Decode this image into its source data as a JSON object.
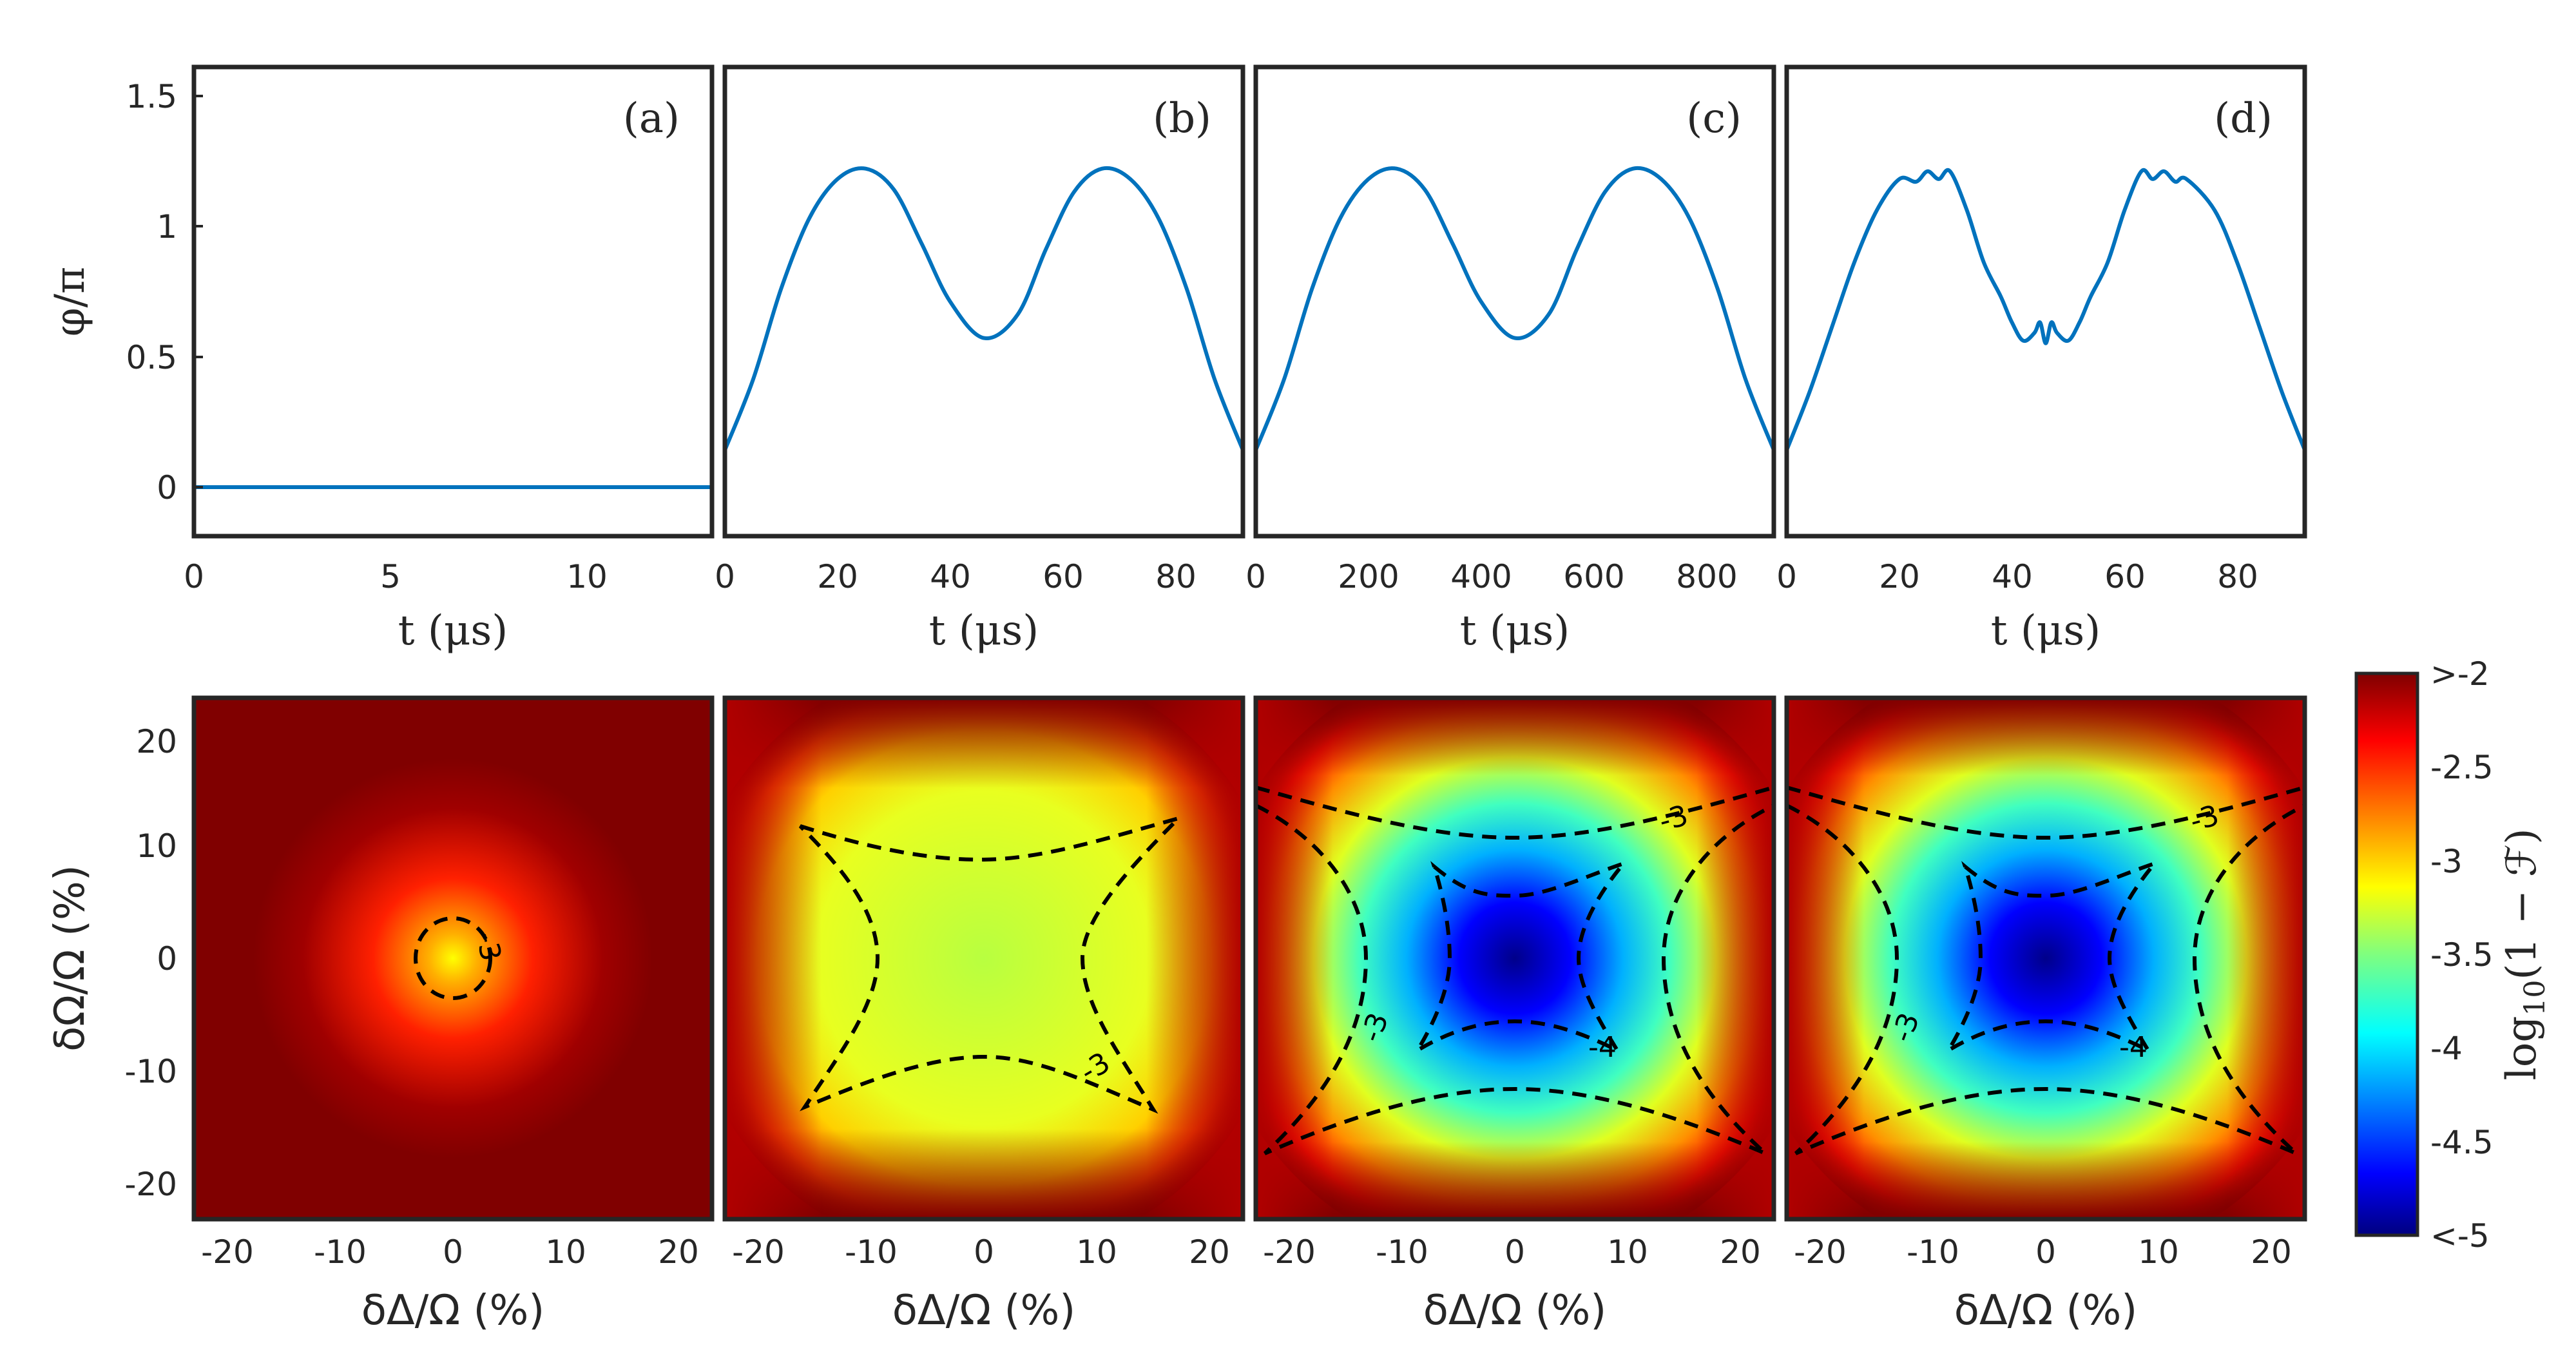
{
  "chart_data": [
    {
      "type": "line",
      "panel": "(a)",
      "x_ticks": [
        "0",
        "5",
        "10"
      ],
      "xlim": [
        0,
        13.2
      ],
      "y_ticks": [
        "0",
        "0.5",
        "1",
        "1.5"
      ],
      "ylim": [
        -0.2,
        1.6
      ],
      "ylabel": "φ/π",
      "xlabel": "t (μs)",
      "color": "#0072BD",
      "x": [
        0,
        13.2
      ],
      "y": [
        0,
        0
      ]
    },
    {
      "type": "line",
      "panel": "(b)",
      "x_ticks": [
        "0",
        "20",
        "40",
        "60",
        "80"
      ],
      "xlim": [
        0,
        92
      ],
      "ylim": [
        -0.2,
        1.6
      ],
      "xlabel": "t (μs)",
      "color": "#0072BD",
      "x": [
        0,
        5,
        10,
        15,
        20,
        25,
        30,
        35,
        40,
        46,
        52,
        57,
        62,
        67,
        72,
        77,
        82,
        87,
        92
      ],
      "y": [
        0.13,
        0.4,
        0.75,
        1.02,
        1.17,
        1.21,
        1.13,
        0.92,
        0.7,
        0.56,
        0.65,
        0.9,
        1.12,
        1.21,
        1.17,
        1.02,
        0.75,
        0.4,
        0.13
      ]
    },
    {
      "type": "line",
      "panel": "(c)",
      "x_ticks": [
        "0",
        "200",
        "400",
        "600",
        "800"
      ],
      "xlim": [
        0,
        920
      ],
      "ylim": [
        -0.2,
        1.6
      ],
      "xlabel": "t (μs)",
      "color": "#0072BD",
      "x": [
        0,
        50,
        100,
        150,
        200,
        250,
        300,
        350,
        400,
        460,
        520,
        570,
        620,
        670,
        720,
        770,
        820,
        870,
        920
      ],
      "y": [
        0.13,
        0.4,
        0.75,
        1.02,
        1.17,
        1.21,
        1.13,
        0.92,
        0.7,
        0.56,
        0.65,
        0.9,
        1.12,
        1.21,
        1.17,
        1.02,
        0.75,
        0.4,
        0.13
      ]
    },
    {
      "type": "line",
      "panel": "(d)",
      "x_ticks": [
        "0",
        "20",
        "40",
        "60",
        "80"
      ],
      "xlim": [
        0,
        92
      ],
      "ylim": [
        -0.2,
        1.6
      ],
      "xlabel": "t (μs)",
      "color": "#0072BD",
      "x": [
        0,
        4,
        8,
        12,
        16,
        20,
        23,
        25,
        27,
        29,
        32,
        35,
        38,
        40,
        42,
        44,
        45,
        46,
        47,
        48,
        50,
        52,
        54,
        57,
        60,
        63,
        65,
        67,
        69,
        71,
        76,
        80,
        84,
        88,
        92
      ],
      "y": [
        0.13,
        0.35,
        0.6,
        0.85,
        1.05,
        1.17,
        1.16,
        1.2,
        1.17,
        1.2,
        1.05,
        0.85,
        0.72,
        0.62,
        0.55,
        0.58,
        0.62,
        0.54,
        0.62,
        0.58,
        0.55,
        0.62,
        0.72,
        0.85,
        1.05,
        1.2,
        1.17,
        1.2,
        1.16,
        1.17,
        1.05,
        0.85,
        0.6,
        0.35,
        0.13
      ]
    },
    {
      "type": "heatmap",
      "panel": "bottom-1",
      "xlabel": "δΔ/Ω (%)",
      "ylabel": "δΩ/Ω (%)",
      "x_ticks": [
        "-20",
        "-10",
        "0",
        "10",
        "20"
      ],
      "y_ticks": [
        "-20",
        "-10",
        "0",
        "10",
        "20"
      ],
      "xlim": [
        -23,
        23
      ],
      "ylim": [
        -23,
        23
      ],
      "contour_labels": [
        "-3"
      ]
    },
    {
      "type": "heatmap",
      "panel": "bottom-2",
      "xlabel": "δΔ/Ω (%)",
      "x_ticks": [
        "-20",
        "-10",
        "0",
        "10",
        "20"
      ],
      "xlim": [
        -23,
        23
      ],
      "ylim": [
        -23,
        23
      ],
      "contour_labels": [
        "-3"
      ]
    },
    {
      "type": "heatmap",
      "panel": "bottom-3",
      "xlabel": "δΔ/Ω (%)",
      "x_ticks": [
        "-20",
        "-10",
        "0",
        "10",
        "20"
      ],
      "xlim": [
        -23,
        23
      ],
      "ylim": [
        -23,
        23
      ],
      "contour_labels": [
        "-3",
        "-3",
        "-4"
      ]
    },
    {
      "type": "heatmap",
      "panel": "bottom-4",
      "xlabel": "δΔ/Ω (%)",
      "x_ticks": [
        "-20",
        "-10",
        "0",
        "10",
        "20"
      ],
      "xlim": [
        -23,
        23
      ],
      "ylim": [
        -23,
        23
      ],
      "contour_labels": [
        "-3",
        "-3",
        "-4"
      ]
    }
  ],
  "colorbar": {
    "label": "log10(1 − F)",
    "tick_labels": [
      ">-2",
      "-2.5",
      "-3",
      "-3.5",
      "-4",
      "-4.5",
      "<-5"
    ],
    "range": [
      -5,
      -2
    ]
  }
}
